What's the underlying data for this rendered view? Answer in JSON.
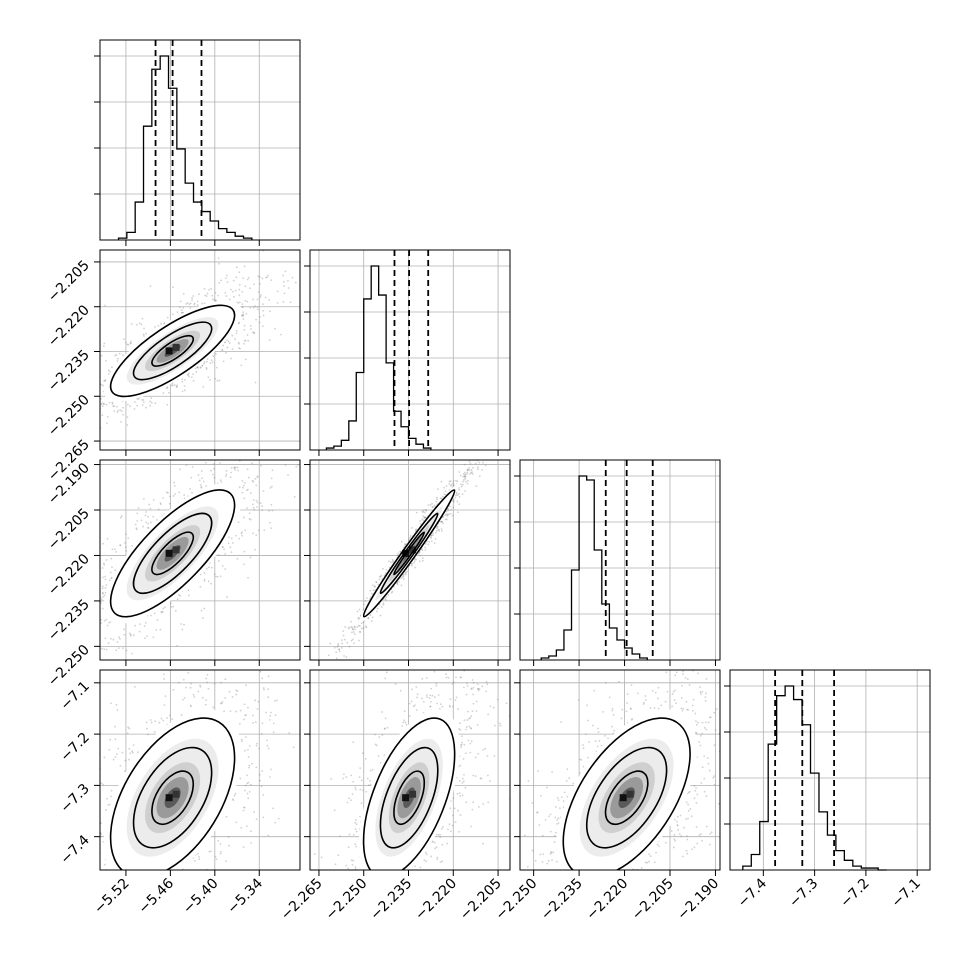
{
  "chart_data": {
    "type": "corner",
    "parameters": [
      {
        "id": "p1",
        "range": [
          -5.555,
          -5.285
        ],
        "ticks": [
          -5.52,
          -5.46,
          -5.4,
          -5.34
        ],
        "tick_labels": [
          "−5.52",
          "−5.46",
          "−5.40",
          "−5.34"
        ],
        "quantiles": [
          -5.48,
          -5.457,
          -5.418
        ],
        "hist_start": -5.53,
        "hist_step": 0.01125,
        "histogram": [
          1,
          4,
          20,
          60,
          90,
          97,
          80,
          48,
          30,
          20,
          15,
          10,
          6,
          4,
          2,
          1
        ]
      },
      {
        "id": "p2",
        "range": [
          -2.268,
          -2.201
        ],
        "ticks": [
          -2.265,
          -2.25,
          -2.235,
          -2.22,
          -2.205
        ],
        "tick_labels": [
          "−2.265",
          "−2.250",
          "−2.235",
          "−2.220",
          "−2.205"
        ],
        "quantiles": [
          -2.2397,
          -2.2348,
          -2.2284
        ],
        "hist_start": -2.2625,
        "hist_step": 0.0025,
        "histogram": [
          1,
          2,
          5,
          15,
          40,
          78,
          95,
          80,
          45,
          20,
          12,
          6,
          3,
          1
        ]
      },
      {
        "id": "p3",
        "range": [
          -2.2545,
          -2.1885
        ],
        "ticks": [
          -2.25,
          -2.235,
          -2.22,
          -2.205,
          -2.19
        ],
        "tick_labels": [
          "−2.250",
          "−2.235",
          "−2.220",
          "−2.205",
          "−2.190"
        ],
        "quantiles": [
          -2.2262,
          -2.2193,
          -2.2107
        ],
        "hist_start": -2.2475,
        "hist_step": 0.0025,
        "histogram": [
          1,
          2,
          5,
          15,
          45,
          92,
          90,
          55,
          28,
          16,
          10,
          6,
          3,
          1
        ]
      },
      {
        "id": "p4",
        "range": [
          -7.465,
          -7.075
        ],
        "ticks": [
          -7.4,
          -7.3,
          -7.2,
          -7.1
        ],
        "tick_labels": [
          "−7.4",
          "−7.3",
          "−7.2",
          "−7.1"
        ],
        "quantiles": [
          -7.377,
          -7.324,
          -7.262
        ],
        "hist_start": -7.44,
        "hist_step": 0.0165,
        "histogram": [
          2,
          8,
          25,
          65,
          90,
          95,
          88,
          75,
          50,
          30,
          18,
          10,
          5,
          2,
          1,
          1,
          0
        ]
      }
    ],
    "correlations": {
      "1-0": 0.78,
      "2-0": 0.76,
      "2-1": 0.985,
      "3-0": 0.5,
      "3-1": 0.55,
      "3-2": 0.55
    },
    "density_levels": [
      "39.3%",
      "86.5%",
      "98.9%"
    ],
    "grid": true
  }
}
